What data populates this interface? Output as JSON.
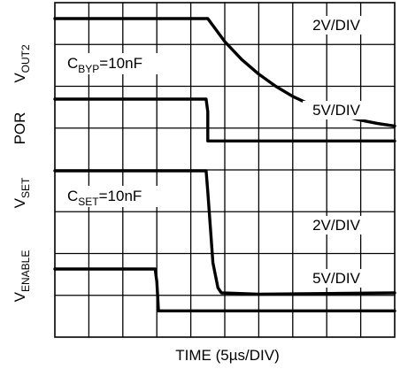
{
  "chart_data": {
    "type": "line",
    "xlabel": "TIME (5µs/DIV)",
    "x_divisions": 10,
    "y_divisions": 8,
    "x_range_div": [
      0,
      10
    ],
    "grid": true,
    "channels": [
      {
        "name_main": "V",
        "name_sub": "OUT2",
        "scale": "2V/DIV",
        "annotation_main": "C",
        "annotation_sub": "BYP",
        "annotation_rest": "=10nF",
        "points": [
          [
            0,
            0
          ],
          [
            4.5,
            0
          ],
          [
            5.0,
            -0.55
          ],
          [
            5.5,
            -0.98
          ],
          [
            6.0,
            -1.33
          ],
          [
            6.5,
            -1.62
          ],
          [
            7.0,
            -1.86
          ],
          [
            7.5,
            -2.05
          ],
          [
            8.0,
            -2.2
          ],
          [
            8.5,
            -2.33
          ],
          [
            9.0,
            -2.43
          ],
          [
            9.5,
            -2.51
          ],
          [
            10,
            -2.57
          ]
        ]
      },
      {
        "name_main": "POR",
        "name_sub": "",
        "scale": "5V/DIV",
        "points": [
          [
            0,
            0
          ],
          [
            4.45,
            0
          ],
          [
            4.5,
            -0.3
          ],
          [
            4.5,
            -1.0
          ],
          [
            10,
            -1.0
          ]
        ]
      },
      {
        "name_main": "V",
        "name_sub": "SET",
        "scale": "2V/DIV",
        "annotation_main": "C",
        "annotation_sub": "SET",
        "annotation_rest": "=10nF",
        "points": [
          [
            0,
            0
          ],
          [
            4.45,
            0
          ],
          [
            4.5,
            -0.5
          ],
          [
            4.65,
            -2.2
          ],
          [
            4.8,
            -2.8
          ],
          [
            4.9,
            -2.92
          ],
          [
            6.0,
            -2.95
          ],
          [
            10,
            -2.92
          ]
        ]
      },
      {
        "name_main": "V",
        "name_sub": "ENABLE",
        "scale": "5V/DIV",
        "points": [
          [
            0,
            0
          ],
          [
            2.95,
            0
          ],
          [
            3.0,
            -0.3
          ],
          [
            3.05,
            -1.0
          ],
          [
            10,
            -1.0
          ]
        ]
      }
    ]
  }
}
